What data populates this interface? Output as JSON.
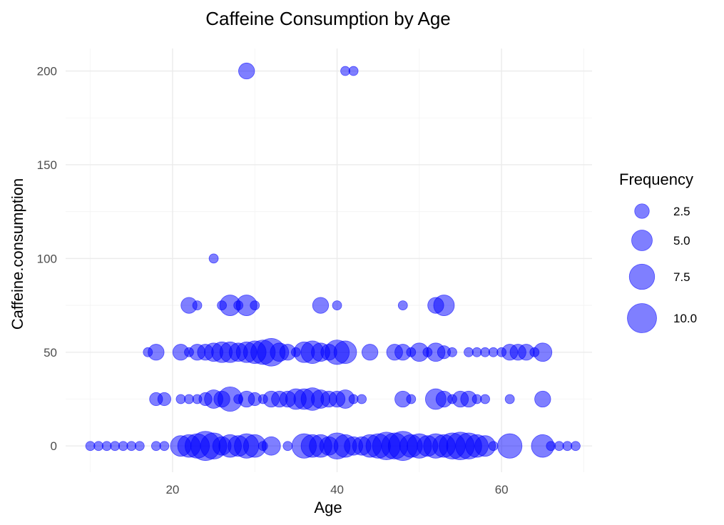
{
  "chart_data": {
    "type": "scatter",
    "title": "Caffeine Consumption by Age",
    "xlabel": "Age",
    "ylabel": "Caffeine.consumption",
    "xlim": [
      7,
      71
    ],
    "ylim": [
      -14,
      212
    ],
    "x_ticks": [
      20,
      40,
      60
    ],
    "y_ticks": [
      0,
      50,
      100,
      150,
      200
    ],
    "grid": true,
    "legend": {
      "title": "Frequency",
      "position": "right",
      "entries": [
        {
          "label": "2.5",
          "size": 2.5
        },
        {
          "label": "5.0",
          "size": 5.0
        },
        {
          "label": "7.5",
          "size": 7.5
        },
        {
          "label": "10.0",
          "size": 10.0
        }
      ]
    },
    "point_color": "#0000ff",
    "point_alpha": 0.5,
    "size_encoding": "Frequency",
    "points": [
      {
        "x": 10,
        "y": 0,
        "freq": 1
      },
      {
        "x": 11,
        "y": 0,
        "freq": 1
      },
      {
        "x": 12,
        "y": 0,
        "freq": 1
      },
      {
        "x": 13,
        "y": 0,
        "freq": 1
      },
      {
        "x": 14,
        "y": 0,
        "freq": 1
      },
      {
        "x": 15,
        "y": 0,
        "freq": 1
      },
      {
        "x": 16,
        "y": 0,
        "freq": 1
      },
      {
        "x": 18,
        "y": 0,
        "freq": 1
      },
      {
        "x": 19,
        "y": 0,
        "freq": 1
      },
      {
        "x": 21,
        "y": 0,
        "freq": 5
      },
      {
        "x": 22,
        "y": 0,
        "freq": 6
      },
      {
        "x": 23,
        "y": 0,
        "freq": 7
      },
      {
        "x": 24,
        "y": 0,
        "freq": 10
      },
      {
        "x": 25,
        "y": 0,
        "freq": 8
      },
      {
        "x": 26,
        "y": 0,
        "freq": 4
      },
      {
        "x": 27,
        "y": 0,
        "freq": 6
      },
      {
        "x": 28,
        "y": 0,
        "freq": 5
      },
      {
        "x": 29,
        "y": 0,
        "freq": 7
      },
      {
        "x": 30,
        "y": 0,
        "freq": 6
      },
      {
        "x": 31,
        "y": 0,
        "freq": 1
      },
      {
        "x": 32,
        "y": 0,
        "freq": 4
      },
      {
        "x": 34,
        "y": 0,
        "freq": 1
      },
      {
        "x": 36,
        "y": 0,
        "freq": 7
      },
      {
        "x": 37,
        "y": 0,
        "freq": 6
      },
      {
        "x": 38,
        "y": 0,
        "freq": 6
      },
      {
        "x": 39,
        "y": 0,
        "freq": 4
      },
      {
        "x": 40,
        "y": 0,
        "freq": 8
      },
      {
        "x": 41,
        "y": 0,
        "freq": 6
      },
      {
        "x": 42,
        "y": 0,
        "freq": 4
      },
      {
        "x": 43,
        "y": 0,
        "freq": 4
      },
      {
        "x": 44,
        "y": 0,
        "freq": 6
      },
      {
        "x": 45,
        "y": 0,
        "freq": 7
      },
      {
        "x": 46,
        "y": 0,
        "freq": 9
      },
      {
        "x": 47,
        "y": 0,
        "freq": 8
      },
      {
        "x": 48,
        "y": 0,
        "freq": 10
      },
      {
        "x": 49,
        "y": 0,
        "freq": 6
      },
      {
        "x": 50,
        "y": 0,
        "freq": 7
      },
      {
        "x": 51,
        "y": 0,
        "freq": 5
      },
      {
        "x": 52,
        "y": 0,
        "freq": 7
      },
      {
        "x": 53,
        "y": 0,
        "freq": 6
      },
      {
        "x": 54,
        "y": 0,
        "freq": 8
      },
      {
        "x": 55,
        "y": 0,
        "freq": 9
      },
      {
        "x": 56,
        "y": 0,
        "freq": 8
      },
      {
        "x": 57,
        "y": 0,
        "freq": 6
      },
      {
        "x": 58,
        "y": 0,
        "freq": 5
      },
      {
        "x": 59,
        "y": 0,
        "freq": 1
      },
      {
        "x": 61,
        "y": 0,
        "freq": 7
      },
      {
        "x": 65,
        "y": 0,
        "freq": 6
      },
      {
        "x": 66,
        "y": 0,
        "freq": 1
      },
      {
        "x": 67,
        "y": 0,
        "freq": 1
      },
      {
        "x": 68,
        "y": 0,
        "freq": 1
      },
      {
        "x": 69,
        "y": 0,
        "freq": 1
      },
      {
        "x": 18,
        "y": 25,
        "freq": 2
      },
      {
        "x": 19,
        "y": 25,
        "freq": 2
      },
      {
        "x": 21,
        "y": 25,
        "freq": 1
      },
      {
        "x": 22,
        "y": 25,
        "freq": 1
      },
      {
        "x": 23,
        "y": 25,
        "freq": 1
      },
      {
        "x": 24,
        "y": 25,
        "freq": 2
      },
      {
        "x": 25,
        "y": 25,
        "freq": 4
      },
      {
        "x": 26,
        "y": 25,
        "freq": 3
      },
      {
        "x": 27,
        "y": 25,
        "freq": 7
      },
      {
        "x": 28,
        "y": 25,
        "freq": 1
      },
      {
        "x": 29,
        "y": 25,
        "freq": 3
      },
      {
        "x": 30,
        "y": 25,
        "freq": 2
      },
      {
        "x": 31,
        "y": 25,
        "freq": 1
      },
      {
        "x": 32,
        "y": 25,
        "freq": 3
      },
      {
        "x": 33,
        "y": 25,
        "freq": 3
      },
      {
        "x": 34,
        "y": 25,
        "freq": 3
      },
      {
        "x": 35,
        "y": 25,
        "freq": 5
      },
      {
        "x": 36,
        "y": 25,
        "freq": 5
      },
      {
        "x": 37,
        "y": 25,
        "freq": 6
      },
      {
        "x": 38,
        "y": 25,
        "freq": 4
      },
      {
        "x": 39,
        "y": 25,
        "freq": 3
      },
      {
        "x": 40,
        "y": 25,
        "freq": 3
      },
      {
        "x": 41,
        "y": 25,
        "freq": 4
      },
      {
        "x": 42,
        "y": 25,
        "freq": 1
      },
      {
        "x": 43,
        "y": 25,
        "freq": 1
      },
      {
        "x": 48,
        "y": 25,
        "freq": 3
      },
      {
        "x": 49,
        "y": 25,
        "freq": 1
      },
      {
        "x": 52,
        "y": 25,
        "freq": 5
      },
      {
        "x": 53,
        "y": 25,
        "freq": 3
      },
      {
        "x": 54,
        "y": 25,
        "freq": 1
      },
      {
        "x": 55,
        "y": 25,
        "freq": 3
      },
      {
        "x": 56,
        "y": 25,
        "freq": 3
      },
      {
        "x": 57,
        "y": 25,
        "freq": 1
      },
      {
        "x": 58,
        "y": 25,
        "freq": 1
      },
      {
        "x": 61,
        "y": 25,
        "freq": 1
      },
      {
        "x": 65,
        "y": 25,
        "freq": 3
      },
      {
        "x": 17,
        "y": 50,
        "freq": 1
      },
      {
        "x": 18,
        "y": 50,
        "freq": 3
      },
      {
        "x": 21,
        "y": 50,
        "freq": 3
      },
      {
        "x": 22,
        "y": 50,
        "freq": 1
      },
      {
        "x": 23,
        "y": 50,
        "freq": 3
      },
      {
        "x": 24,
        "y": 50,
        "freq": 3
      },
      {
        "x": 25,
        "y": 50,
        "freq": 4
      },
      {
        "x": 26,
        "y": 50,
        "freq": 5
      },
      {
        "x": 27,
        "y": 50,
        "freq": 5
      },
      {
        "x": 28,
        "y": 50,
        "freq": 4
      },
      {
        "x": 29,
        "y": 50,
        "freq": 5
      },
      {
        "x": 30,
        "y": 50,
        "freq": 6
      },
      {
        "x": 31,
        "y": 50,
        "freq": 7
      },
      {
        "x": 32,
        "y": 50,
        "freq": 9
      },
      {
        "x": 33,
        "y": 50,
        "freq": 4
      },
      {
        "x": 34,
        "y": 50,
        "freq": 3
      },
      {
        "x": 35,
        "y": 50,
        "freq": 1
      },
      {
        "x": 36,
        "y": 50,
        "freq": 5
      },
      {
        "x": 37,
        "y": 50,
        "freq": 6
      },
      {
        "x": 38,
        "y": 50,
        "freq": 4
      },
      {
        "x": 39,
        "y": 50,
        "freq": 3
      },
      {
        "x": 40,
        "y": 50,
        "freq": 7
      },
      {
        "x": 41,
        "y": 50,
        "freq": 6
      },
      {
        "x": 44,
        "y": 50,
        "freq": 3
      },
      {
        "x": 47,
        "y": 50,
        "freq": 3
      },
      {
        "x": 48,
        "y": 50,
        "freq": 3
      },
      {
        "x": 49,
        "y": 50,
        "freq": 1
      },
      {
        "x": 50,
        "y": 50,
        "freq": 4
      },
      {
        "x": 51,
        "y": 50,
        "freq": 1
      },
      {
        "x": 52,
        "y": 50,
        "freq": 4
      },
      {
        "x": 53,
        "y": 50,
        "freq": 2
      },
      {
        "x": 54,
        "y": 50,
        "freq": 1
      },
      {
        "x": 56,
        "y": 50,
        "freq": 1
      },
      {
        "x": 57,
        "y": 50,
        "freq": 1
      },
      {
        "x": 58,
        "y": 50,
        "freq": 1
      },
      {
        "x": 59,
        "y": 50,
        "freq": 1
      },
      {
        "x": 60,
        "y": 50,
        "freq": 1
      },
      {
        "x": 61,
        "y": 50,
        "freq": 3
      },
      {
        "x": 62,
        "y": 50,
        "freq": 3
      },
      {
        "x": 63,
        "y": 50,
        "freq": 3
      },
      {
        "x": 64,
        "y": 50,
        "freq": 1
      },
      {
        "x": 65,
        "y": 50,
        "freq": 4
      },
      {
        "x": 22,
        "y": 75,
        "freq": 3
      },
      {
        "x": 23,
        "y": 75,
        "freq": 1
      },
      {
        "x": 26,
        "y": 75,
        "freq": 1
      },
      {
        "x": 27,
        "y": 75,
        "freq": 5
      },
      {
        "x": 28,
        "y": 75,
        "freq": 1
      },
      {
        "x": 29,
        "y": 75,
        "freq": 5
      },
      {
        "x": 30,
        "y": 75,
        "freq": 1
      },
      {
        "x": 38,
        "y": 75,
        "freq": 3
      },
      {
        "x": 40,
        "y": 75,
        "freq": 1
      },
      {
        "x": 48,
        "y": 75,
        "freq": 1
      },
      {
        "x": 52,
        "y": 75,
        "freq": 3
      },
      {
        "x": 53,
        "y": 75,
        "freq": 5
      },
      {
        "x": 25,
        "y": 100,
        "freq": 1
      },
      {
        "x": 29,
        "y": 200,
        "freq": 3
      },
      {
        "x": 41,
        "y": 200,
        "freq": 1
      },
      {
        "x": 42,
        "y": 200,
        "freq": 1
      }
    ]
  }
}
